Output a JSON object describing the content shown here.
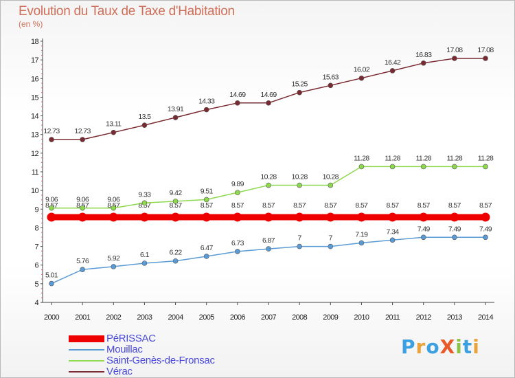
{
  "header": {
    "title": "Evolution du Taux de Taxe d'Habitation",
    "unit": "(en %)"
  },
  "logo": {
    "text": "ProXiti",
    "colors": [
      "#3aa0e0",
      "#e8a33a",
      "#3aa0e0",
      "#e85a2a",
      "#8bc34a",
      "#3aa0e0",
      "#e8a33a"
    ]
  },
  "chart_data": {
    "type": "line",
    "x": [
      2000,
      2001,
      2002,
      2003,
      2004,
      2005,
      2006,
      2007,
      2008,
      2009,
      2010,
      2011,
      2012,
      2013,
      2014
    ],
    "ylim": [
      4,
      18
    ],
    "yticks": [
      4,
      5,
      6,
      7,
      8,
      9,
      10,
      11,
      12,
      13,
      14,
      15,
      16,
      17,
      18
    ],
    "grid": false,
    "legend_position": "bottom-left",
    "series": [
      {
        "name": "PéRISSAC",
        "color": "#ee0000",
        "values": [
          8.57,
          8.57,
          8.57,
          8.57,
          8.57,
          8.57,
          8.57,
          8.57,
          8.57,
          8.57,
          8.57,
          8.57,
          8.57,
          8.57,
          8.57
        ],
        "labels": [
          "8.57",
          "8.57",
          "8.57",
          "8.57",
          "8.57",
          "8.57",
          "8.57",
          "8.57",
          "8.57",
          "8.57",
          "8.57",
          "8.57",
          "8.57",
          "8.57",
          "8.57"
        ]
      },
      {
        "name": "Mouillac",
        "color": "#5b9bd5",
        "values": [
          5.01,
          5.76,
          5.92,
          6.1,
          6.22,
          6.47,
          6.73,
          6.87,
          7,
          7,
          7.19,
          7.34,
          7.49,
          7.49,
          7.49
        ],
        "labels": [
          "5.01",
          "5.76",
          "5.92",
          "6.1",
          "6.22",
          "6.47",
          "6.73",
          "6.87",
          "7",
          "7",
          "7.19",
          "7.34",
          "7.49",
          "7.49",
          "7.49"
        ]
      },
      {
        "name": "Saint-Genès-de-Fronsac",
        "color": "#8ed84e",
        "values": [
          9.06,
          9.06,
          9.06,
          9.33,
          9.42,
          9.51,
          9.89,
          10.28,
          10.28,
          10.28,
          11.28,
          11.28,
          11.28,
          11.28,
          11.28
        ],
        "labels": [
          "9.06",
          "9.06",
          "9.06",
          "9.33",
          "9.42",
          "9.51",
          "9.89",
          "10.28",
          "10.28",
          "10.28",
          "11.28",
          "11.28",
          "11.28",
          "11.28",
          "11.28"
        ]
      },
      {
        "name": "Vérac",
        "color": "#7a2a30",
        "values": [
          12.73,
          12.73,
          13.11,
          13.5,
          13.91,
          14.33,
          14.69,
          14.69,
          15.25,
          15.63,
          16.02,
          16.42,
          16.83,
          17.08,
          17.08
        ],
        "labels": [
          "12.73",
          "12.73",
          "13.11",
          "13.5",
          "13.91",
          "14.33",
          "14.69",
          "14.69",
          "15.25",
          "15.63",
          "16.02",
          "16.42",
          "16.83",
          "17.08",
          "17.08"
        ]
      }
    ]
  }
}
